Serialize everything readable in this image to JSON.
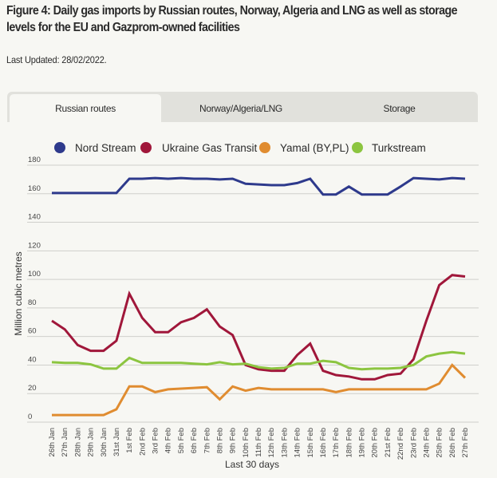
{
  "page": {
    "title": "Figure 4: Daily gas imports by Russian routes, Norway, Algeria and LNG as well as storage levels for the EU and Gazprom-owned facilities",
    "last_updated": "Last Updated: 28/02/2022."
  },
  "tabs": [
    {
      "label": "Russian routes",
      "active": true
    },
    {
      "label": "Norway/Algeria/LNG",
      "active": false
    },
    {
      "label": "Storage",
      "active": false
    }
  ],
  "chart_data": {
    "type": "line",
    "title": "",
    "xlabel": "Last 30 days",
    "ylabel": "Million cubic metres",
    "ylim": [
      0,
      180
    ],
    "yticks": [
      0,
      20,
      40,
      60,
      80,
      100,
      120,
      140,
      160,
      180
    ],
    "grid": true,
    "legend_position": "top",
    "x": [
      "26th Jan",
      "27th Jan",
      "28th Jan",
      "29th Jan",
      "30th Jan",
      "31st Jan",
      "1st Feb",
      "2nd Feb",
      "3rd Feb",
      "4th Feb",
      "5th Feb",
      "6th Feb",
      "7th Feb",
      "8th Feb",
      "9th Feb",
      "10th Feb",
      "11th Feb",
      "12th Feb",
      "13th Feb",
      "14th Feb",
      "15th Feb",
      "16th Feb",
      "17th Feb",
      "18th Feb",
      "19th Feb",
      "20th Feb",
      "21st Feb",
      "22nd Feb",
      "23rd Feb",
      "24th Feb",
      "25th Feb",
      "26th Feb",
      "27th Feb"
    ],
    "series": [
      {
        "name": "Nord Stream",
        "color": "#2e3a8c",
        "values": [
          160.5,
          160.5,
          160.5,
          160.5,
          160.5,
          160.5,
          170.5,
          170.5,
          171,
          170.5,
          171,
          170.5,
          170.5,
          170,
          170.5,
          167,
          166.5,
          166,
          166,
          167.5,
          170.5,
          159.5,
          159.5,
          165,
          159.5,
          159.5,
          159.5,
          165,
          171,
          170.5,
          170,
          171,
          170.5
        ]
      },
      {
        "name": "Ukraine Gas Transit",
        "color": "#a0173a",
        "values": [
          71,
          65,
          54,
          50,
          50,
          57,
          90,
          73,
          63,
          63,
          70,
          73,
          79,
          67,
          61,
          40,
          37,
          36,
          36,
          47,
          55,
          36,
          33,
          32,
          30,
          30,
          33,
          34,
          44,
          71,
          96,
          103,
          102
        ]
      },
      {
        "name": "Yamal (BY,PL)",
        "color": "#e08c30",
        "values": [
          5,
          5,
          5,
          5,
          5,
          9,
          25,
          25,
          21,
          23,
          23.5,
          24,
          24.5,
          16,
          25,
          22,
          24,
          23,
          23,
          23,
          23,
          23,
          21,
          23,
          23,
          23,
          23,
          23,
          23,
          23,
          27,
          40,
          31
        ]
      },
      {
        "name": "Turkstream",
        "color": "#8cc540",
        "values": [
          42,
          41.5,
          41.5,
          40.5,
          37.5,
          37.5,
          45,
          41.5,
          41.5,
          41.5,
          41.5,
          41,
          40.5,
          42,
          40.5,
          41,
          38.5,
          37.5,
          38,
          41,
          41,
          43,
          42,
          38,
          37,
          37.5,
          37.5,
          38,
          40,
          46,
          48,
          49,
          48
        ]
      }
    ],
    "gridline_color": "#cfcfcb"
  }
}
